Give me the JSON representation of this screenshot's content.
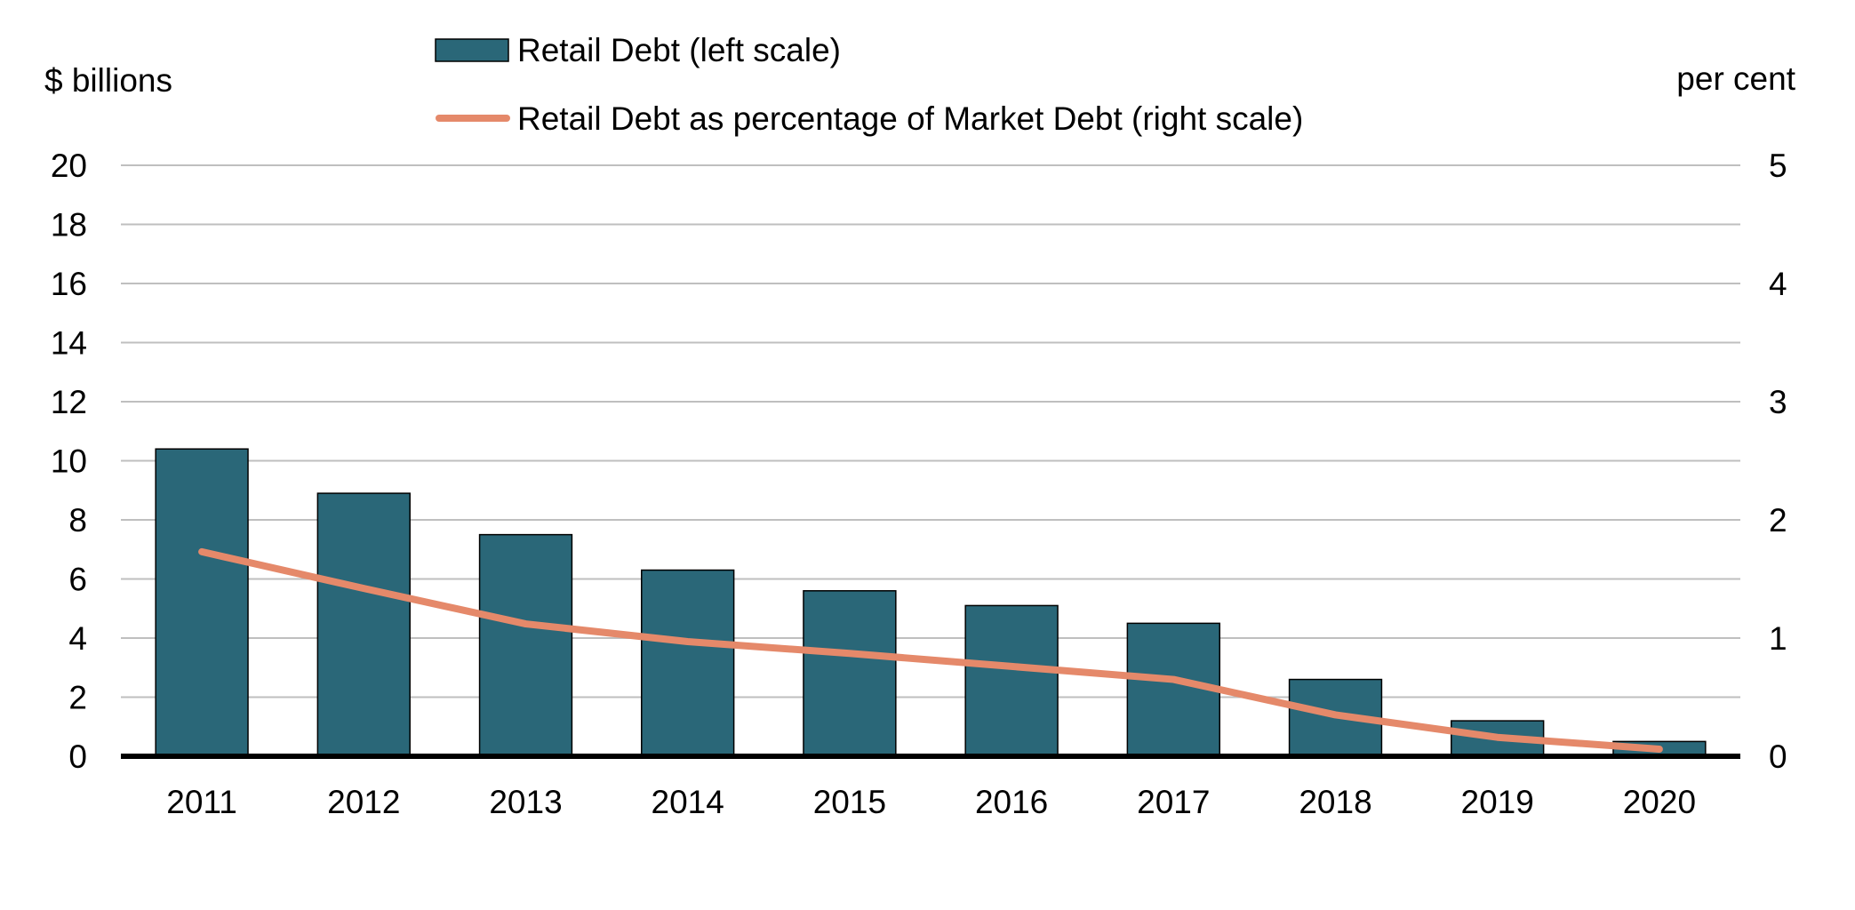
{
  "chart_data": {
    "type": "bar",
    "categories": [
      "2011",
      "2012",
      "2013",
      "2014",
      "2015",
      "2016",
      "2017",
      "2018",
      "2019",
      "2020"
    ],
    "series": [
      {
        "name": "Retail Debt (left scale)",
        "type": "bar",
        "axis": "left",
        "color": "#2a6778",
        "values": [
          10.4,
          8.9,
          7.5,
          6.3,
          5.6,
          5.1,
          4.5,
          2.6,
          1.2,
          0.5
        ]
      },
      {
        "name": "Retail Debt as percentage of Market Debt (right scale)",
        "type": "line",
        "axis": "right",
        "color": "#e5896a",
        "values": [
          1.73,
          1.42,
          1.12,
          0.97,
          0.87,
          0.76,
          0.65,
          0.35,
          0.16,
          0.06
        ]
      }
    ],
    "y_left": {
      "label": "$ billions",
      "ylim": [
        0,
        20
      ],
      "ticks": [
        "0",
        "2",
        "4",
        "6",
        "8",
        "10",
        "12",
        "14",
        "16",
        "18",
        "20"
      ]
    },
    "y_right": {
      "label": "per cent",
      "ylim": [
        0,
        5
      ],
      "ticks": [
        "0",
        "1",
        "2",
        "3",
        "4",
        "5"
      ]
    },
    "grid": true,
    "legend_position": "top-center"
  }
}
